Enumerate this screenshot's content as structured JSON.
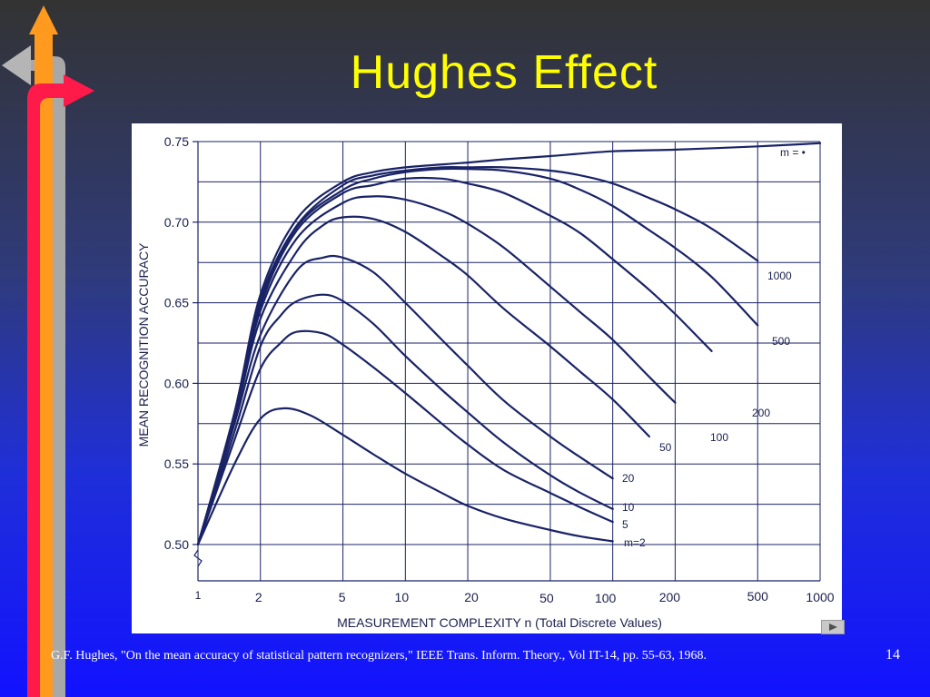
{
  "slide": {
    "title": "Hughes Effect",
    "citation": "G.F. Hughes, \"On the mean accuracy of statistical pattern recognizers,\" IEEE Trans. Inform. Theory., Vol IT-14, pp. 55-63, 1968.",
    "page_number": "14"
  },
  "colors": {
    "title": "#ffff00",
    "curve": "#1a2366",
    "grid": "#1a2366",
    "arrow_up": "#ff9a1e",
    "arrow_right": "#ff1a4a",
    "arrow_left": "#b0b0b0"
  },
  "icons": [
    "up-arrow-icon",
    "right-arrow-icon",
    "left-arrow-icon",
    "next-slide-icon"
  ],
  "chart_data": {
    "type": "line",
    "title": "",
    "xlabel": "MEASUREMENT COMPLEXITY n  (Total Discrete Values)",
    "ylabel": "MEAN RECOGNITION ACCURACY",
    "xscale": "log",
    "xlim": [
      1,
      1000
    ],
    "ylim": [
      0.5,
      0.75
    ],
    "grid": true,
    "x_ticks": [
      {
        "value": 1,
        "label": "1"
      },
      {
        "value": 2,
        "label": "2"
      },
      {
        "value": 5,
        "label": "5"
      },
      {
        "value": 10,
        "label": "10"
      },
      {
        "value": 20,
        "label": "20"
      },
      {
        "value": 50,
        "label": "50"
      },
      {
        "value": 100,
        "label": "100"
      },
      {
        "value": 200,
        "label": "200"
      },
      {
        "value": 500,
        "label": "500"
      },
      {
        "value": 1000,
        "label": "1000"
      }
    ],
    "y_ticks": [
      {
        "value": 0.5,
        "label": "0.50"
      },
      {
        "value": 0.55,
        "label": "0.55"
      },
      {
        "value": 0.6,
        "label": "0.60"
      },
      {
        "value": 0.65,
        "label": "0.65"
      },
      {
        "value": 0.7,
        "label": "0.70"
      },
      {
        "value": 0.75,
        "label": "0.75"
      }
    ],
    "series": [
      {
        "name": "m=2",
        "x": [
          1,
          1.5,
          2,
          2.6,
          3.5,
          5,
          7,
          10,
          15,
          20,
          30,
          50,
          70,
          100
        ],
        "y": [
          0.5,
          0.55,
          0.578,
          0.5845,
          0.58,
          0.568,
          0.556,
          0.544,
          0.532,
          0.524,
          0.516,
          0.509,
          0.505,
          0.502
        ]
      },
      {
        "name": "5",
        "x": [
          1,
          1.5,
          2,
          2.5,
          3,
          4,
          5,
          7,
          10,
          15,
          20,
          30,
          50,
          70,
          100
        ],
        "y": [
          0.5,
          0.565,
          0.609,
          0.625,
          0.632,
          0.631,
          0.624,
          0.61,
          0.594,
          0.575,
          0.562,
          0.546,
          0.532,
          0.523,
          0.514
        ]
      },
      {
        "name": "10",
        "x": [
          1,
          1.5,
          2,
          2.5,
          3,
          4,
          5,
          7,
          10,
          15,
          20,
          30,
          50,
          70,
          100
        ],
        "y": [
          0.5,
          0.57,
          0.623,
          0.642,
          0.651,
          0.655,
          0.651,
          0.637,
          0.617,
          0.596,
          0.582,
          0.563,
          0.543,
          0.532,
          0.522
        ]
      },
      {
        "name": "20",
        "x": [
          1,
          1.5,
          2,
          3,
          4,
          5,
          7,
          10,
          15,
          20,
          30,
          50,
          70,
          100
        ],
        "y": [
          0.5,
          0.575,
          0.63,
          0.67,
          0.678,
          0.678,
          0.669,
          0.65,
          0.627,
          0.611,
          0.589,
          0.567,
          0.554,
          0.541
        ]
      },
      {
        "name": "50",
        "x": [
          1,
          1.5,
          2,
          3,
          4,
          5,
          7,
          10,
          15,
          20,
          30,
          50,
          70,
          100,
          150
        ],
        "y": [
          0.5,
          0.578,
          0.64,
          0.682,
          0.698,
          0.703,
          0.702,
          0.694,
          0.679,
          0.667,
          0.646,
          0.623,
          0.607,
          0.59,
          0.567
        ]
      },
      {
        "name": "100",
        "x": [
          1,
          1.5,
          2,
          3,
          5,
          7,
          10,
          15,
          20,
          30,
          50,
          70,
          100,
          150,
          200
        ],
        "y": [
          0.5,
          0.58,
          0.645,
          0.69,
          0.712,
          0.716,
          0.714,
          0.707,
          0.699,
          0.684,
          0.66,
          0.644,
          0.627,
          0.604,
          0.588
        ]
      },
      {
        "name": "200",
        "x": [
          1,
          1.5,
          2,
          3,
          5,
          7,
          10,
          15,
          20,
          30,
          50,
          70,
          100,
          150,
          200,
          300
        ],
        "y": [
          0.5,
          0.58,
          0.648,
          0.695,
          0.718,
          0.723,
          0.727,
          0.727,
          0.724,
          0.718,
          0.704,
          0.693,
          0.677,
          0.658,
          0.643,
          0.62
        ]
      },
      {
        "name": "500",
        "x": [
          1,
          1.5,
          2,
          3,
          5,
          7,
          10,
          15,
          20,
          30,
          50,
          70,
          100,
          150,
          200,
          300,
          500
        ],
        "y": [
          0.5,
          0.58,
          0.65,
          0.697,
          0.72,
          0.727,
          0.731,
          0.733,
          0.733,
          0.732,
          0.727,
          0.72,
          0.71,
          0.695,
          0.684,
          0.666,
          0.636
        ]
      },
      {
        "name": "1000",
        "x": [
          1,
          1.5,
          2,
          3,
          5,
          7,
          10,
          15,
          20,
          30,
          50,
          70,
          100,
          150,
          200,
          300,
          500
        ],
        "y": [
          0.5,
          0.58,
          0.652,
          0.698,
          0.723,
          0.729,
          0.732,
          0.734,
          0.734,
          0.734,
          0.732,
          0.729,
          0.724,
          0.715,
          0.708,
          0.696,
          0.676
        ]
      },
      {
        "name": "m = •",
        "x": [
          1,
          1.5,
          2,
          3,
          5,
          7,
          10,
          20,
          30,
          50,
          100,
          200,
          500,
          1000
        ],
        "y": [
          0.5,
          0.582,
          0.655,
          0.702,
          0.725,
          0.731,
          0.734,
          0.737,
          0.739,
          0.741,
          0.744,
          0.745,
          0.747,
          0.749
        ]
      }
    ]
  }
}
